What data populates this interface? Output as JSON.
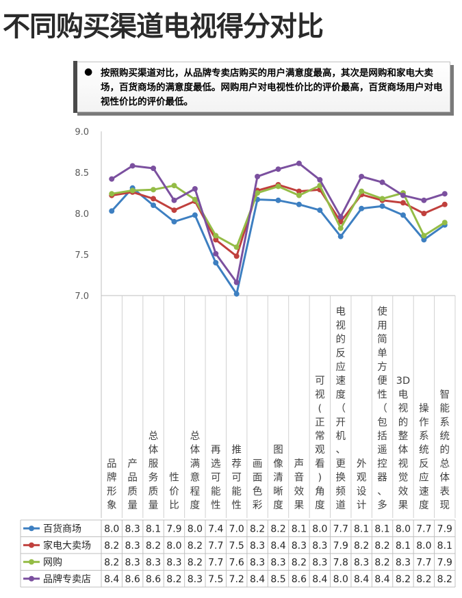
{
  "title": "不同购买渠道电视得分对比",
  "callout": {
    "bullet": "●",
    "text": "按照购买渠道对比，从品牌专卖店购买的用户满意度最高，其次是网购和家电大卖场，百货商场的满意度最低。网购用户对电视性价比的评价最高，百货商场用户对电视性价比的评价最低。"
  },
  "chart_data": {
    "type": "line",
    "categories": [
      "品牌形象",
      "产品质量",
      "总体服务质量",
      "性价比",
      "总体满意程度",
      "再选可能性",
      "推荐可能性",
      "画面色彩",
      "图像清晰度",
      "声音效果",
      "可视(正常观看)角度",
      "电视的反应速度（开机、更换频道…",
      "外观设计",
      "使用简单方便性（包括遥控器、多…",
      "3D电视的整体视觉效果",
      "操作系统反应速度",
      "智能系统的总体表现"
    ],
    "series": [
      {
        "name": "百货商场",
        "color": "#3d7fc1",
        "values": [
          8.03,
          8.31,
          8.1,
          7.9,
          7.98,
          7.4,
          7.02,
          8.17,
          8.16,
          8.11,
          8.04,
          7.72,
          8.06,
          8.09,
          7.98,
          7.68,
          7.86
        ],
        "table": [
          "8.0",
          "8.3",
          "8.1",
          "7.9",
          "8.0",
          "7.4",
          "7.0",
          "8.2",
          "8.2",
          "8.1",
          "8.0",
          "7.7",
          "8.1",
          "8.1",
          "8.0",
          "7.7",
          "7.9"
        ]
      },
      {
        "name": "家电大卖场",
        "color": "#c0403d",
        "values": [
          8.22,
          8.26,
          8.18,
          8.04,
          8.15,
          7.68,
          7.48,
          8.28,
          8.35,
          8.27,
          8.29,
          7.9,
          8.23,
          8.16,
          8.13,
          8.0,
          8.11
        ],
        "table": [
          "8.2",
          "8.3",
          "8.2",
          "8.0",
          "8.2",
          "7.7",
          "7.5",
          "8.3",
          "8.4",
          "8.3",
          "8.3",
          "7.9",
          "8.2",
          "8.2",
          "8.1",
          "8.0",
          "8.1"
        ]
      },
      {
        "name": "网购",
        "color": "#94bc46",
        "values": [
          8.24,
          8.28,
          8.29,
          8.34,
          8.17,
          7.73,
          7.59,
          8.25,
          8.33,
          8.22,
          8.34,
          7.82,
          8.27,
          8.18,
          8.25,
          7.73,
          7.89
        ],
        "table": [
          "8.2",
          "8.3",
          "8.3",
          "8.3",
          "8.2",
          "7.7",
          "7.6",
          "8.3",
          "8.3",
          "8.2",
          "8.3",
          "7.8",
          "8.3",
          "8.2",
          "8.3",
          "7.7",
          "7.9"
        ]
      },
      {
        "name": "品牌专卖店",
        "color": "#7b509f",
        "values": [
          8.42,
          8.58,
          8.55,
          8.16,
          8.3,
          7.51,
          7.16,
          8.45,
          8.54,
          8.61,
          8.41,
          7.96,
          8.45,
          8.38,
          8.22,
          8.16,
          8.24
        ],
        "table": [
          "8.4",
          "8.6",
          "8.6",
          "8.2",
          "8.3",
          "7.5",
          "7.2",
          "8.4",
          "8.5",
          "8.6",
          "8.4",
          "8.0",
          "8.4",
          "8.4",
          "8.2",
          "8.2",
          "8.2"
        ]
      }
    ],
    "ylim": [
      7.0,
      9.0
    ],
    "yticks": [
      "7.0",
      "7.5",
      "8.0",
      "8.5",
      "9.0"
    ],
    "grid": false,
    "legend": "data-table"
  }
}
